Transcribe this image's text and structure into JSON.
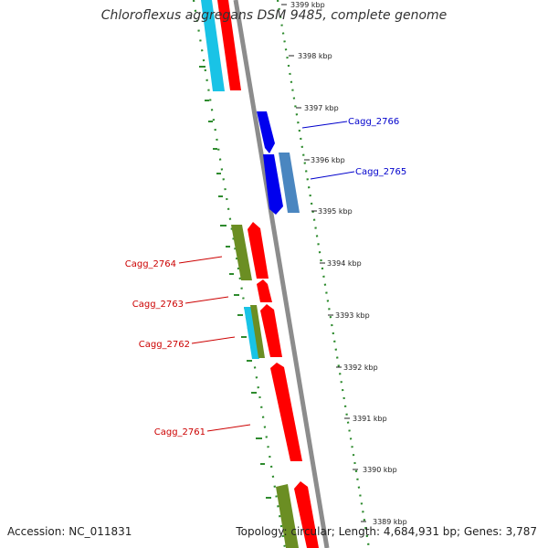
{
  "title": "Chloroflexus aggregans DSM 9485, complete genome",
  "footer": {
    "accession": "Accession: NC_011831",
    "summary": "Topology: circular; Length: 4,684,931 bp; Genes: 3,787"
  },
  "ruler": {
    "ticks": [
      "3399 kbp",
      "3398 kbp",
      "3397 kbp",
      "3396 kbp",
      "3395 kbp",
      "3394 kbp",
      "3393 kbp",
      "3392 kbp",
      "3391 kbp",
      "3390 kbp",
      "3389 kbp"
    ]
  },
  "gene_labels": [
    {
      "text": "Cagg_2766",
      "color": "#0000cc"
    },
    {
      "text": "Cagg_2765",
      "color": "#0000cc"
    },
    {
      "text": "Cagg_2764",
      "color": "#cc0000"
    },
    {
      "text": "Cagg_2763",
      "color": "#cc0000"
    },
    {
      "text": "Cagg_2762",
      "color": "#cc0000"
    },
    {
      "text": "Cagg_2761",
      "color": "#cc0000"
    }
  ],
  "colors": {
    "backbone": "#8c8c8c",
    "gc_dots": "#2e8b2e",
    "cds_forward": "#ff0000",
    "cds_reverse": "#0000ff",
    "steelblue": "#4a86c0",
    "olive": "#6b8e23",
    "cyan": "#19c3e6"
  }
}
